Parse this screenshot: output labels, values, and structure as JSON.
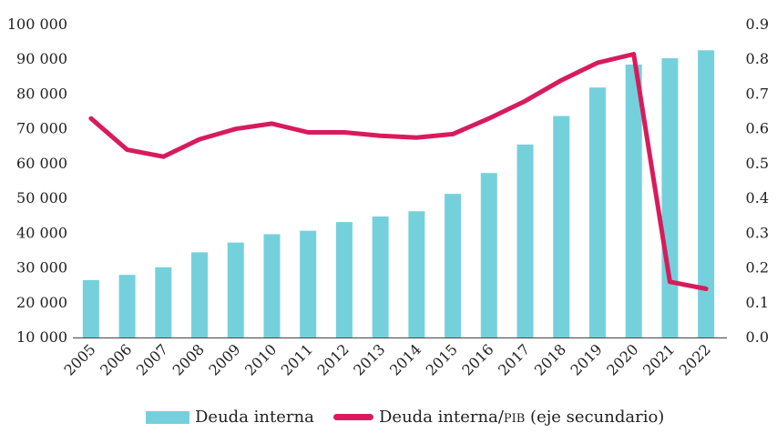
{
  "chart_data": {
    "type": "bar+line",
    "categories": [
      "2005",
      "2006",
      "2007",
      "2008",
      "2009",
      "2010",
      "2011",
      "2012",
      "2013",
      "2014",
      "2015",
      "2016",
      "2017",
      "2018",
      "2019",
      "2020",
      "2021",
      "2022"
    ],
    "series": [
      {
        "name": "Deuda interna",
        "type": "bar",
        "axis": "left",
        "values": [
          26500,
          28000,
          30200,
          34500,
          37300,
          39700,
          40700,
          43200,
          44800,
          46300,
          51300,
          57300,
          65500,
          73700,
          81900,
          88500,
          90300,
          92600
        ]
      },
      {
        "name": "Deuda interna/PIB (eje secundario)",
        "name_prefix": "Deuda interna/",
        "name_sc": "pib",
        "name_suffix": " (eje secundario)",
        "type": "line",
        "axis": "right",
        "values": [
          0.63,
          0.54,
          0.52,
          0.57,
          0.6,
          0.615,
          0.59,
          0.59,
          0.58,
          0.575,
          0.585,
          0.63,
          0.68,
          0.74,
          0.79,
          0.815,
          0.16,
          0.14
        ]
      }
    ],
    "y_left": {
      "lim": [
        10000,
        100000
      ],
      "ticks": [
        "10 000",
        "20 000",
        "30 000",
        "40 000",
        "50 000",
        "60 000",
        "70 000",
        "80 000",
        "90 000",
        "100 000"
      ]
    },
    "y_right": {
      "lim": [
        0,
        0.9
      ],
      "ticks": [
        "0.0",
        "0.1",
        "0.2",
        "0.3",
        "0.4",
        "0.5",
        "0.6",
        "0.7",
        "0.8",
        "0.9"
      ]
    },
    "colors": {
      "bar": "#74D1DB",
      "line": "#D81B5C",
      "axis": "#444444"
    },
    "legend_position": "bottom"
  }
}
